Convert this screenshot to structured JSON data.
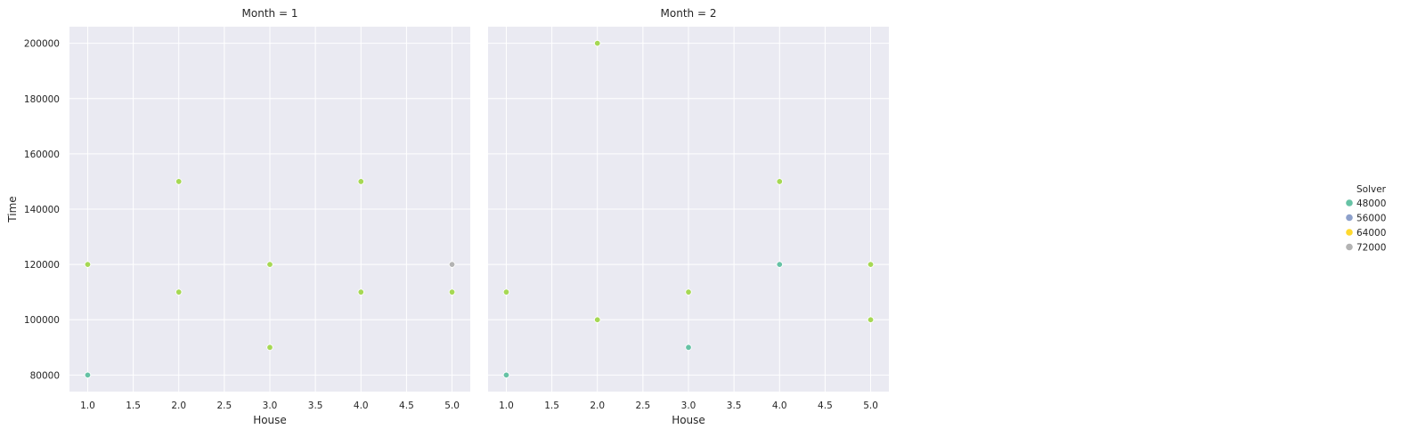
{
  "chart_data": {
    "type": "scatter",
    "x_label": "House",
    "y_label": "Time",
    "xlim": [
      0.8,
      5.2
    ],
    "ylim": [
      74000,
      206000
    ],
    "x_ticks": [
      "1.0",
      "1.5",
      "2.0",
      "2.5",
      "3.0",
      "3.5",
      "4.0",
      "4.5",
      "5.0"
    ],
    "y_ticks": [
      "80000",
      "100000",
      "120000",
      "140000",
      "160000",
      "180000",
      "200000"
    ],
    "grid": true,
    "legend": {
      "title": "Solver",
      "placement": "right",
      "entries": [
        {
          "label": "48000",
          "color": "#66c2a5"
        },
        {
          "label": "56000",
          "color": "#8da0cb"
        },
        {
          "label": "64000",
          "color": "#ffd92f"
        },
        {
          "label": "72000",
          "color": "#b3b3b3"
        }
      ]
    },
    "panels": [
      {
        "title": "Month = 1",
        "points": [
          {
            "x": 1,
            "y": 80000,
            "color": "#66c2a5"
          },
          {
            "x": 1,
            "y": 120000,
            "color": "#a6d854"
          },
          {
            "x": 2,
            "y": 110000,
            "color": "#a6d854"
          },
          {
            "x": 2,
            "y": 150000,
            "color": "#a6d854"
          },
          {
            "x": 3,
            "y": 90000,
            "color": "#a6d854"
          },
          {
            "x": 3,
            "y": 120000,
            "color": "#a6d854"
          },
          {
            "x": 4,
            "y": 110000,
            "color": "#a6d854"
          },
          {
            "x": 4,
            "y": 150000,
            "color": "#a6d854"
          },
          {
            "x": 5,
            "y": 110000,
            "color": "#a6d854"
          },
          {
            "x": 5,
            "y": 120000,
            "color": "#b3b3b3"
          }
        ]
      },
      {
        "title": "Month = 2",
        "points": [
          {
            "x": 1,
            "y": 80000,
            "color": "#66c2a5"
          },
          {
            "x": 1,
            "y": 110000,
            "color": "#a6d854"
          },
          {
            "x": 2,
            "y": 100000,
            "color": "#a6d854"
          },
          {
            "x": 2,
            "y": 200000,
            "color": "#a6d854"
          },
          {
            "x": 3,
            "y": 90000,
            "color": "#66c2a5"
          },
          {
            "x": 3,
            "y": 110000,
            "color": "#a6d854"
          },
          {
            "x": 4,
            "y": 120000,
            "color": "#66c2a5"
          },
          {
            "x": 4,
            "y": 150000,
            "color": "#a6d854"
          },
          {
            "x": 5,
            "y": 100000,
            "color": "#a6d854"
          },
          {
            "x": 5,
            "y": 120000,
            "color": "#a6d854"
          }
        ]
      }
    ]
  }
}
